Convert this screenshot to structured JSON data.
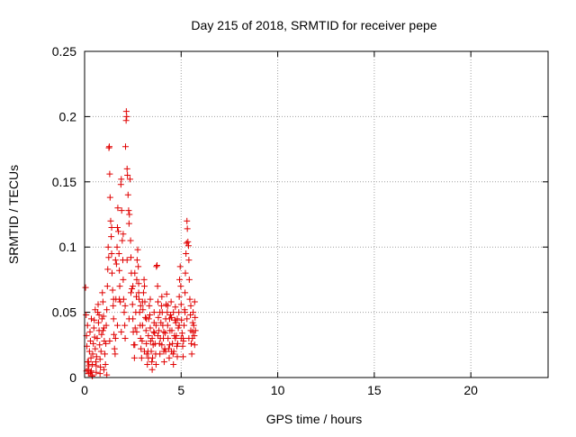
{
  "chart_data": {
    "type": "scatter",
    "title": "Day 215 of 2018, SRMTID for receiver pepe",
    "xlabel": "GPS time / hours",
    "ylabel": "SRMTID / TECUs",
    "xlim": [
      0,
      24
    ],
    "ylim": [
      0,
      0.25
    ],
    "x_ticks": [
      0,
      5,
      10,
      15,
      20
    ],
    "x_tick_labels": [
      "0",
      "5",
      "10",
      "15",
      "20"
    ],
    "y_ticks": [
      0,
      0.05,
      0.1,
      0.15,
      0.2,
      0.25
    ],
    "y_tick_labels": [
      "0",
      "0.05",
      "0.1",
      "0.15",
      "0.2",
      "0.25"
    ],
    "grid": true,
    "marker": "plus",
    "colors": {
      "marker": "#e00000",
      "grid": "#a0a0a0",
      "axis": "#000000"
    },
    "series": [
      {
        "name": "pepe",
        "points": [
          [
            0.05,
            0.069
          ],
          [
            0.08,
            0.048
          ],
          [
            0.1,
            0.032
          ],
          [
            0.12,
            0.024
          ],
          [
            0.15,
            0.012
          ],
          [
            0.18,
            0.006
          ],
          [
            0.2,
            0.003
          ],
          [
            0.22,
            0.009
          ],
          [
            0.25,
            0.02
          ],
          [
            0.28,
            0.035
          ],
          [
            0.3,
            0.028
          ],
          [
            0.33,
            0.015
          ],
          [
            0.35,
            0.005
          ],
          [
            0.38,
            0.002
          ],
          [
            0.4,
            0.01
          ],
          [
            0.42,
            0.018
          ],
          [
            0.45,
            0.026
          ],
          [
            0.48,
            0.038
          ],
          [
            0.5,
            0.044
          ],
          [
            0.52,
            0.031
          ],
          [
            0.55,
            0.022
          ],
          [
            0.58,
            0.012
          ],
          [
            0.6,
            0.004
          ],
          [
            0.62,
            0.016
          ],
          [
            0.65,
            0.03
          ],
          [
            0.68,
            0.05
          ],
          [
            0.7,
            0.056
          ],
          [
            0.72,
            0.042
          ],
          [
            0.75,
            0.036
          ],
          [
            0.78,
            0.025
          ],
          [
            0.8,
            0.014
          ],
          [
            0.82,
            0.008
          ],
          [
            0.85,
            0.02
          ],
          [
            0.88,
            0.033
          ],
          [
            0.9,
            0.045
          ],
          [
            0.92,
            0.065
          ],
          [
            0.95,
            0.058
          ],
          [
            0.98,
            0.047
          ],
          [
            1.0,
            0.038
          ],
          [
            1.02,
            0.028
          ],
          [
            1.05,
            0.018
          ],
          [
            1.08,
            0.01
          ],
          [
            1.1,
            0.026
          ],
          [
            1.12,
            0.04
          ],
          [
            1.15,
            0.052
          ],
          [
            1.18,
            0.07
          ],
          [
            1.2,
            0.083
          ],
          [
            1.22,
            0.1
          ],
          [
            1.25,
            0.092
          ],
          [
            1.26,
            0.176
          ],
          [
            1.28,
            0.177
          ],
          [
            1.3,
            0.156
          ],
          [
            1.32,
            0.138
          ],
          [
            1.35,
            0.12
          ],
          [
            1.38,
            0.108
          ],
          [
            1.4,
            0.095
          ],
          [
            1.42,
            0.08
          ],
          [
            1.45,
            0.067
          ],
          [
            1.48,
            0.055
          ],
          [
            1.5,
            0.045
          ],
          [
            1.52,
            0.033
          ],
          [
            1.55,
            0.022
          ],
          [
            1.58,
            0.018
          ],
          [
            1.6,
            0.03
          ],
          [
            1.62,
            0.06
          ],
          [
            1.65,
            0.087
          ],
          [
            1.68,
            0.1
          ],
          [
            1.7,
            0.115
          ],
          [
            1.72,
            0.13
          ],
          [
            1.75,
            0.112
          ],
          [
            1.78,
            0.095
          ],
          [
            1.8,
            0.082
          ],
          [
            1.82,
            0.07
          ],
          [
            1.85,
            0.058
          ],
          [
            1.88,
            0.148
          ],
          [
            1.9,
            0.152
          ],
          [
            1.92,
            0.128
          ],
          [
            1.95,
            0.105
          ],
          [
            1.98,
            0.09
          ],
          [
            2.0,
            0.075
          ],
          [
            2.02,
            0.06
          ],
          [
            2.05,
            0.05
          ],
          [
            2.08,
            0.04
          ],
          [
            2.1,
            0.03
          ],
          [
            2.12,
            0.177
          ],
          [
            2.15,
            0.197
          ],
          [
            2.16,
            0.204
          ],
          [
            2.18,
            0.2
          ],
          [
            2.2,
            0.16
          ],
          [
            2.22,
            0.155
          ],
          [
            2.25,
            0.14
          ],
          [
            2.28,
            0.128
          ],
          [
            2.3,
            0.118
          ],
          [
            2.32,
            0.125
          ],
          [
            2.35,
            0.152
          ],
          [
            2.38,
            0.105
          ],
          [
            2.4,
            0.092
          ],
          [
            2.42,
            0.08
          ],
          [
            2.45,
            0.068
          ],
          [
            2.48,
            0.056
          ],
          [
            2.5,
            0.045
          ],
          [
            2.52,
            0.035
          ],
          [
            2.55,
            0.025
          ],
          [
            2.58,
            0.015
          ],
          [
            2.6,
            0.025
          ],
          [
            2.62,
            0.038
          ],
          [
            2.65,
            0.05
          ],
          [
            2.68,
            0.062
          ],
          [
            2.7,
            0.075
          ],
          [
            2.72,
            0.09
          ],
          [
            2.75,
            0.098
          ],
          [
            2.78,
            0.085
          ],
          [
            2.8,
            0.072
          ],
          [
            2.82,
            0.06
          ],
          [
            2.85,
            0.05
          ],
          [
            2.88,
            0.04
          ],
          [
            2.9,
            0.03
          ],
          [
            2.92,
            0.022
          ],
          [
            2.95,
            0.015
          ],
          [
            2.98,
            0.028
          ],
          [
            3.0,
            0.04
          ],
          [
            3.02,
            0.052
          ],
          [
            3.05,
            0.065
          ],
          [
            3.08,
            0.075
          ],
          [
            3.1,
            0.07
          ],
          [
            3.12,
            0.058
          ],
          [
            3.15,
            0.046
          ],
          [
            3.18,
            0.036
          ],
          [
            3.2,
            0.026
          ],
          [
            3.22,
            0.018
          ],
          [
            3.25,
            0.01
          ],
          [
            3.28,
            0.02
          ],
          [
            3.3,
            0.032
          ],
          [
            3.32,
            0.045
          ],
          [
            3.35,
            0.055
          ],
          [
            3.38,
            0.048
          ],
          [
            3.4,
            0.038
          ],
          [
            3.42,
            0.028
          ],
          [
            3.45,
            0.02
          ],
          [
            3.48,
            0.012
          ],
          [
            3.5,
            0.006
          ],
          [
            3.52,
            0.015
          ],
          [
            3.55,
            0.025
          ],
          [
            3.58,
            0.035
          ],
          [
            3.6,
            0.042
          ],
          [
            3.62,
            0.034
          ],
          [
            3.65,
            0.026
          ],
          [
            3.68,
            0.018
          ],
          [
            3.7,
            0.01
          ],
          [
            3.72,
            0.085
          ],
          [
            3.75,
            0.086
          ],
          [
            3.78,
            0.07
          ],
          [
            3.8,
            0.058
          ],
          [
            3.82,
            0.046
          ],
          [
            3.85,
            0.036
          ],
          [
            3.88,
            0.026
          ],
          [
            3.9,
            0.018
          ],
          [
            3.92,
            0.03
          ],
          [
            3.95,
            0.042
          ],
          [
            3.98,
            0.055
          ],
          [
            4.0,
            0.062
          ],
          [
            4.02,
            0.05
          ],
          [
            4.05,
            0.04
          ],
          [
            4.08,
            0.03
          ],
          [
            4.1,
            0.02
          ],
          [
            4.12,
            0.012
          ],
          [
            4.15,
            0.022
          ],
          [
            4.18,
            0.034
          ],
          [
            4.2,
            0.045
          ],
          [
            4.22,
            0.056
          ],
          [
            4.25,
            0.064
          ],
          [
            4.28,
            0.05
          ],
          [
            4.3,
            0.04
          ],
          [
            4.32,
            0.03
          ],
          [
            4.35,
            0.022
          ],
          [
            4.38,
            0.015
          ],
          [
            4.4,
            0.025
          ],
          [
            4.42,
            0.036
          ],
          [
            4.45,
            0.048
          ],
          [
            4.48,
            0.058
          ],
          [
            4.5,
            0.046
          ],
          [
            4.52,
            0.036
          ],
          [
            4.55,
            0.026
          ],
          [
            4.58,
            0.018
          ],
          [
            4.6,
            0.01
          ],
          [
            4.62,
            0.02
          ],
          [
            4.65,
            0.032
          ],
          [
            4.68,
            0.044
          ],
          [
            4.7,
            0.054
          ],
          [
            4.72,
            0.042
          ],
          [
            4.75,
            0.032
          ],
          [
            4.78,
            0.024
          ],
          [
            4.8,
            0.016
          ],
          [
            4.82,
            0.026
          ],
          [
            4.85,
            0.038
          ],
          [
            4.88,
            0.05
          ],
          [
            4.9,
            0.062
          ],
          [
            4.92,
            0.075
          ],
          [
            4.95,
            0.085
          ],
          [
            4.98,
            0.07
          ],
          [
            5.0,
            0.056
          ],
          [
            5.02,
            0.044
          ],
          [
            5.05,
            0.034
          ],
          [
            5.08,
            0.024
          ],
          [
            5.1,
            0.016
          ],
          [
            5.12,
            0.028
          ],
          [
            5.15,
            0.04
          ],
          [
            5.18,
            0.052
          ],
          [
            5.2,
            0.065
          ],
          [
            5.22,
            0.08
          ],
          [
            5.25,
            0.095
          ],
          [
            5.28,
            0.103
          ],
          [
            5.3,
            0.12
          ],
          [
            5.32,
            0.114
          ],
          [
            5.35,
            0.104
          ],
          [
            5.38,
            0.101
          ],
          [
            5.4,
            0.09
          ],
          [
            5.42,
            0.075
          ],
          [
            5.45,
            0.06
          ],
          [
            5.48,
            0.048
          ],
          [
            5.5,
            0.036
          ],
          [
            5.52,
            0.026
          ],
          [
            5.55,
            0.018
          ],
          [
            5.58,
            0.03
          ],
          [
            5.6,
            0.042
          ],
          [
            5.62,
            0.05
          ],
          [
            5.65,
            0.04
          ],
          [
            5.68,
            0.032
          ],
          [
            5.7,
            0.058
          ],
          [
            5.72,
            0.046
          ],
          [
            5.74,
            0.036
          ],
          [
            0.1,
            0.005
          ],
          [
            0.2,
            0.012
          ],
          [
            0.3,
            0.004
          ],
          [
            0.4,
            0.001
          ],
          [
            0.6,
            0.009
          ],
          [
            0.8,
            0.003
          ],
          [
            1.0,
            0.006
          ],
          [
            1.15,
            0.002
          ],
          [
            0.15,
            0.04
          ],
          [
            0.35,
            0.045
          ],
          [
            0.55,
            0.052
          ],
          [
            0.75,
            0.048
          ],
          [
            0.95,
            0.036
          ],
          [
            1.3,
            0.028
          ],
          [
            1.5,
            0.06
          ],
          [
            1.7,
            0.04
          ],
          [
            1.9,
            0.035
          ],
          [
            2.1,
            0.055
          ],
          [
            2.3,
            0.045
          ],
          [
            2.5,
            0.07
          ],
          [
            2.7,
            0.035
          ],
          [
            2.9,
            0.055
          ],
          [
            3.1,
            0.02
          ],
          [
            3.3,
            0.015
          ],
          [
            3.5,
            0.03
          ],
          [
            3.7,
            0.04
          ],
          [
            3.9,
            0.05
          ],
          [
            4.1,
            0.035
          ],
          [
            4.3,
            0.055
          ],
          [
            4.5,
            0.02
          ],
          [
            4.7,
            0.03
          ],
          [
            4.9,
            0.04
          ],
          [
            5.1,
            0.03
          ],
          [
            5.3,
            0.045
          ],
          [
            5.5,
            0.055
          ],
          [
            5.7,
            0.025
          ],
          [
            1.4,
            0.115
          ],
          [
            1.6,
            0.09
          ],
          [
            1.8,
            0.06
          ],
          [
            2.0,
            0.11
          ],
          [
            2.2,
            0.09
          ],
          [
            2.4,
            0.065
          ],
          [
            2.6,
            0.08
          ],
          [
            2.8,
            0.065
          ],
          [
            3.0,
            0.058
          ],
          [
            3.2,
            0.045
          ],
          [
            3.4,
            0.06
          ],
          [
            3.6,
            0.05
          ],
          [
            3.8,
            0.032
          ],
          [
            4.0,
            0.025
          ],
          [
            4.2,
            0.02
          ],
          [
            4.4,
            0.045
          ],
          [
            4.6,
            0.05
          ],
          [
            4.8,
            0.045
          ],
          [
            5.0,
            0.03
          ],
          [
            5.2,
            0.05
          ],
          [
            5.4,
            0.03
          ],
          [
            5.6,
            0.035
          ]
        ]
      }
    ]
  }
}
